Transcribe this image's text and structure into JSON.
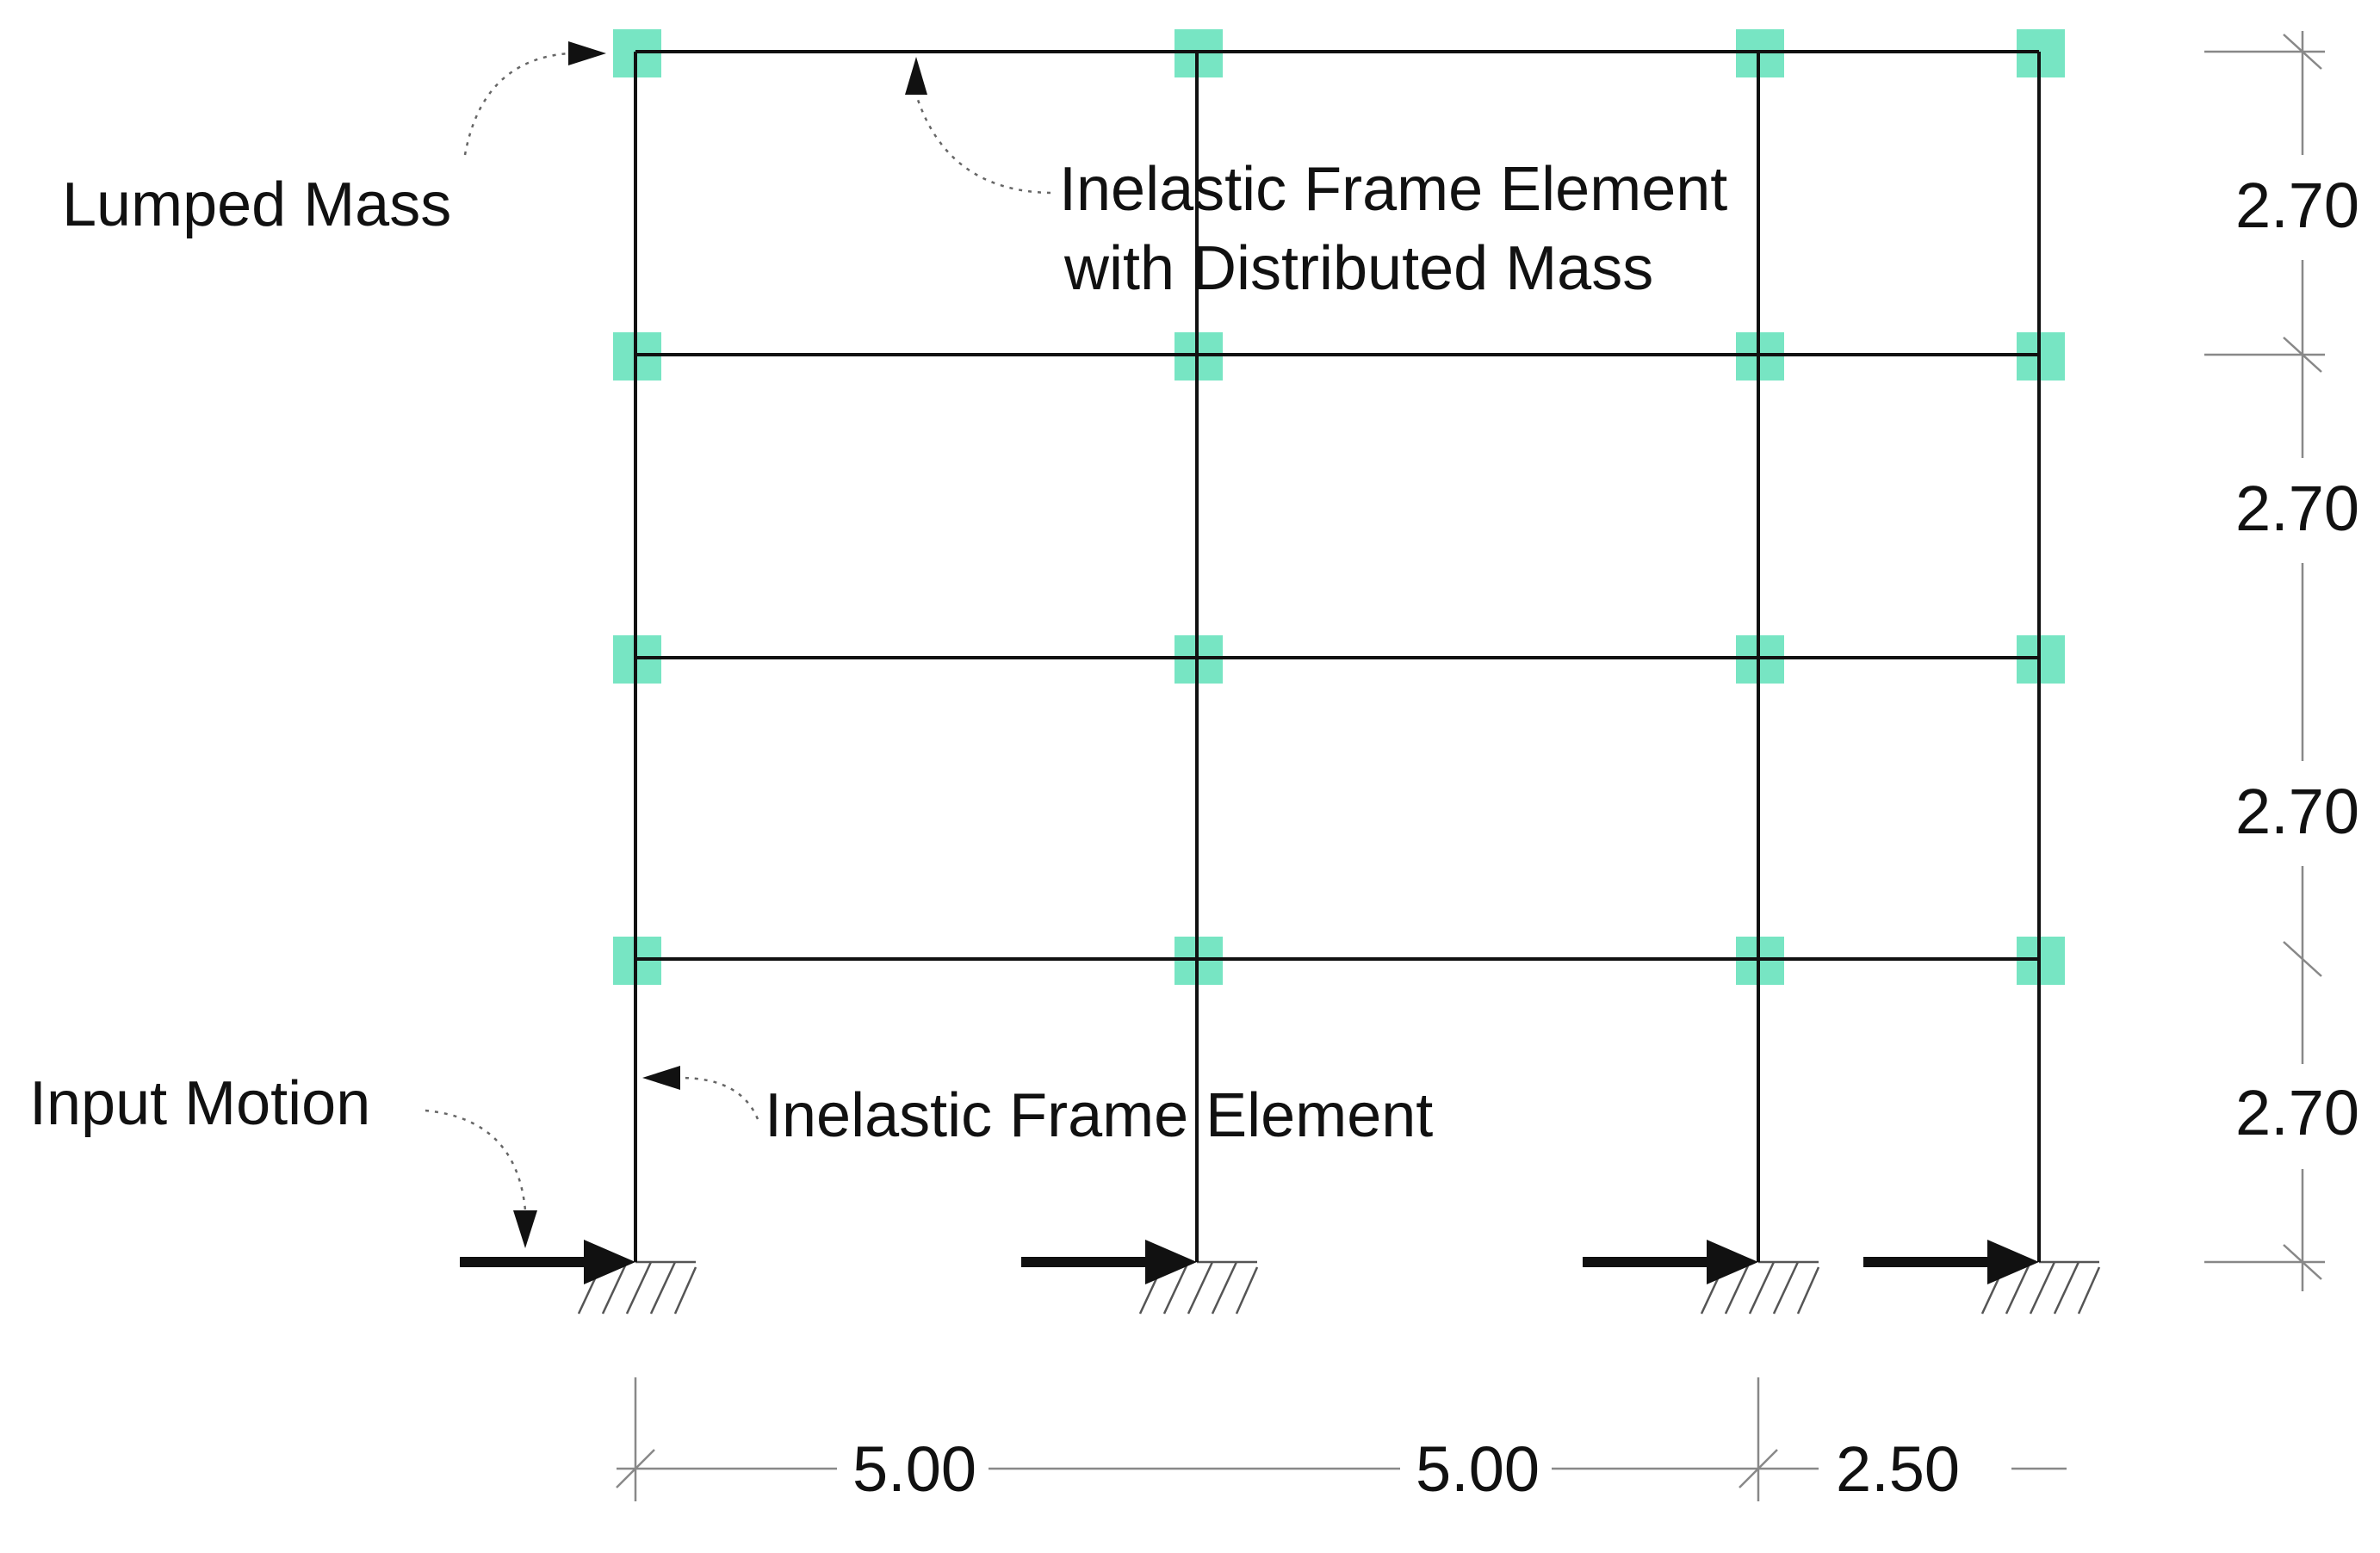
{
  "colors": {
    "node": "#5fe0b8",
    "frame": "#111111",
    "dimension": "#888888"
  },
  "labels": {
    "lumped_mass": "Lumped Mass",
    "inelastic_distributed_line1": "Inelastic Frame Element",
    "inelastic_distributed_line2": "with Distributed Mass",
    "input_motion": "Input Motion",
    "inelastic_frame_element": "Inelastic Frame Element"
  },
  "dimensions": {
    "bays": [
      "5.00",
      "5.00",
      "2.50"
    ],
    "storeys": [
      "2.70",
      "2.70",
      "2.70",
      "2.70"
    ]
  }
}
